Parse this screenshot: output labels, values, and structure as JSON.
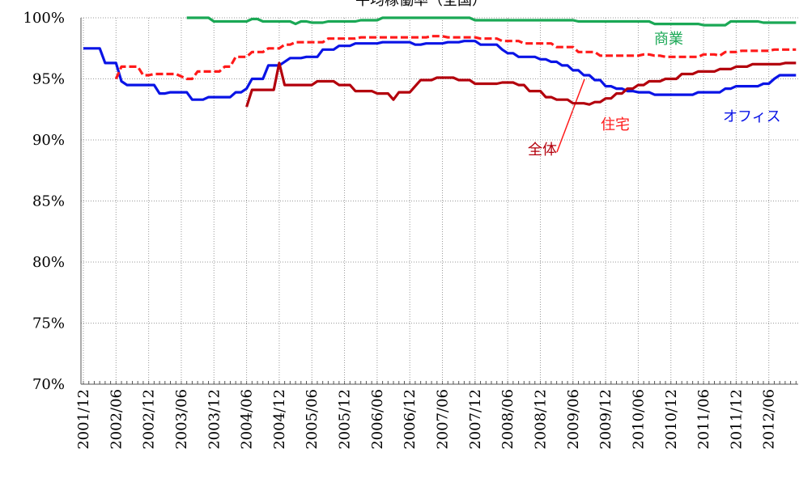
{
  "chart_data": {
    "type": "line",
    "title": "平均稼働率（全国）",
    "categories": [
      "2001/12",
      null,
      null,
      null,
      null,
      null,
      "2002/06",
      null,
      null,
      null,
      null,
      null,
      "2002/12",
      null,
      null,
      null,
      null,
      null,
      "2003/06",
      null,
      null,
      null,
      null,
      null,
      "2003/12",
      null,
      null,
      null,
      null,
      null,
      "2004/06",
      null,
      null,
      null,
      null,
      null,
      "2004/12",
      null,
      null,
      null,
      null,
      null,
      "2005/06",
      null,
      null,
      null,
      null,
      null,
      "2005/12",
      null,
      null,
      null,
      null,
      null,
      "2006/06",
      null,
      null,
      null,
      null,
      null,
      "2006/12",
      null,
      null,
      null,
      null,
      null,
      "2007/06",
      null,
      null,
      null,
      null,
      null,
      "2007/12",
      null,
      null,
      null,
      null,
      null,
      "2008/06",
      null,
      null,
      null,
      null,
      null,
      "2008/12",
      null,
      null,
      null,
      null,
      null,
      "2009/06",
      null,
      null,
      null,
      null,
      null,
      "2009/12",
      null,
      null,
      null,
      null,
      null,
      "2010/06",
      null,
      null,
      null,
      null,
      null,
      "2010/12",
      null,
      null,
      null,
      null,
      null,
      "2011/06",
      null,
      null,
      null,
      null,
      null,
      "2011/12",
      null,
      null,
      null,
      null,
      null,
      "2012/06",
      null,
      null,
      null,
      null,
      null
    ],
    "series": [
      {
        "name": "オフィス",
        "color": "#0a14e6",
        "dashed": false,
        "values": [
          97.5,
          97.5,
          97.5,
          97.5,
          96.3,
          96.3,
          96.3,
          94.8,
          94.5,
          94.5,
          94.5,
          94.5,
          94.5,
          94.5,
          93.8,
          93.8,
          93.9,
          93.9,
          93.9,
          93.9,
          93.3,
          93.3,
          93.3,
          93.5,
          93.5,
          93.5,
          93.5,
          93.5,
          93.9,
          93.9,
          94.2,
          95.0,
          95.0,
          95.0,
          96.1,
          96.1,
          96.1,
          96.4,
          96.7,
          96.7,
          96.7,
          96.8,
          96.8,
          96.8,
          97.4,
          97.4,
          97.4,
          97.7,
          97.7,
          97.7,
          97.9,
          97.9,
          97.9,
          97.9,
          97.9,
          98.0,
          98.0,
          98.0,
          98.0,
          98.0,
          98.0,
          97.8,
          97.8,
          97.9,
          97.9,
          97.9,
          97.9,
          98.0,
          98.0,
          98.0,
          98.1,
          98.1,
          98.1,
          97.8,
          97.8,
          97.8,
          97.8,
          97.4,
          97.1,
          97.1,
          96.8,
          96.8,
          96.8,
          96.8,
          96.6,
          96.6,
          96.4,
          96.4,
          96.1,
          96.1,
          95.7,
          95.7,
          95.3,
          95.3,
          94.9,
          94.9,
          94.4,
          94.4,
          94.2,
          94.2,
          94.0,
          94.0,
          93.9,
          93.9,
          93.9,
          93.7,
          93.7,
          93.7,
          93.7,
          93.7,
          93.7,
          93.7,
          93.7,
          93.9,
          93.9,
          93.9,
          93.9,
          93.9,
          94.2,
          94.2,
          94.4,
          94.4,
          94.4,
          94.4,
          94.4,
          94.6,
          94.6,
          95.0,
          95.3,
          95.3,
          95.3,
          95.3
        ]
      },
      {
        "name": "住宅",
        "color": "#ff1a1a",
        "dashed": true,
        "values": [
          null,
          null,
          null,
          null,
          null,
          null,
          95.0,
          96.0,
          96.0,
          96.0,
          96.0,
          95.3,
          95.3,
          95.4,
          95.4,
          95.4,
          95.4,
          95.4,
          95.2,
          95.0,
          95.0,
          95.6,
          95.6,
          95.6,
          95.6,
          95.6,
          96.0,
          96.0,
          96.8,
          96.8,
          96.8,
          97.2,
          97.2,
          97.2,
          97.5,
          97.5,
          97.5,
          97.8,
          97.8,
          98.0,
          98.0,
          98.0,
          98.0,
          98.0,
          98.0,
          98.3,
          98.3,
          98.3,
          98.3,
          98.3,
          98.3,
          98.4,
          98.4,
          98.4,
          98.4,
          98.4,
          98.4,
          98.4,
          98.4,
          98.4,
          98.4,
          98.4,
          98.4,
          98.4,
          98.5,
          98.5,
          98.5,
          98.4,
          98.4,
          98.4,
          98.4,
          98.4,
          98.4,
          98.3,
          98.3,
          98.3,
          98.3,
          98.1,
          98.1,
          98.1,
          98.1,
          97.9,
          97.9,
          97.9,
          97.9,
          97.9,
          97.9,
          97.6,
          97.6,
          97.6,
          97.6,
          97.2,
          97.2,
          97.2,
          97.2,
          96.9,
          96.9,
          96.9,
          96.9,
          96.9,
          96.9,
          96.9,
          96.9,
          97.0,
          97.0,
          96.9,
          96.9,
          96.8,
          96.8,
          96.8,
          96.8,
          96.8,
          96.8,
          96.8,
          97.0,
          97.0,
          97.0,
          96.9,
          97.2,
          97.2,
          97.2,
          97.3,
          97.3,
          97.3,
          97.3,
          97.3,
          97.3,
          97.4,
          97.4,
          97.4,
          97.4,
          97.4
        ]
      },
      {
        "name": "全体",
        "color": "#b3000c",
        "dashed": false,
        "values": [
          null,
          null,
          null,
          null,
          null,
          null,
          null,
          null,
          null,
          null,
          null,
          null,
          null,
          null,
          null,
          null,
          null,
          null,
          null,
          null,
          null,
          null,
          null,
          null,
          null,
          null,
          null,
          null,
          null,
          null,
          92.7,
          94.1,
          94.1,
          94.1,
          94.1,
          94.1,
          96.3,
          94.5,
          94.5,
          94.5,
          94.5,
          94.5,
          94.5,
          94.8,
          94.8,
          94.8,
          94.8,
          94.5,
          94.5,
          94.5,
          94.0,
          94.0,
          94.0,
          94.0,
          93.8,
          93.8,
          93.8,
          93.3,
          93.9,
          93.9,
          93.9,
          94.4,
          94.9,
          94.9,
          94.9,
          95.1,
          95.1,
          95.1,
          95.1,
          94.9,
          94.9,
          94.9,
          94.6,
          94.6,
          94.6,
          94.6,
          94.6,
          94.7,
          94.7,
          94.7,
          94.5,
          94.5,
          94.0,
          94.0,
          94.0,
          93.5,
          93.5,
          93.3,
          93.3,
          93.3,
          93.0,
          93.0,
          93.0,
          92.9,
          93.1,
          93.1,
          93.4,
          93.4,
          93.8,
          93.8,
          94.2,
          94.2,
          94.5,
          94.5,
          94.8,
          94.8,
          94.8,
          95.0,
          95.0,
          95.0,
          95.4,
          95.4,
          95.4,
          95.6,
          95.6,
          95.6,
          95.6,
          95.8,
          95.8,
          95.8,
          96.0,
          96.0,
          96.0,
          96.2,
          96.2,
          96.2,
          96.2,
          96.2,
          96.2,
          96.3,
          96.3,
          96.3
        ]
      },
      {
        "name": "商業",
        "color": "#1aa855",
        "dashed": false,
        "values": [
          null,
          null,
          null,
          null,
          null,
          null,
          null,
          null,
          null,
          null,
          null,
          null,
          null,
          null,
          null,
          null,
          null,
          null,
          null,
          100.0,
          100.0,
          100.0,
          100.0,
          100.0,
          99.7,
          99.7,
          99.7,
          99.7,
          99.7,
          99.7,
          99.7,
          99.9,
          99.9,
          99.7,
          99.7,
          99.7,
          99.7,
          99.7,
          99.7,
          99.5,
          99.7,
          99.7,
          99.6,
          99.6,
          99.6,
          99.7,
          99.7,
          99.7,
          99.7,
          99.7,
          99.7,
          99.8,
          99.8,
          99.8,
          99.8,
          100.0,
          100.0,
          100.0,
          100.0,
          100.0,
          100.0,
          100.0,
          100.0,
          100.0,
          100.0,
          100.0,
          100.0,
          100.0,
          100.0,
          100.0,
          100.0,
          100.0,
          99.8,
          99.8,
          99.8,
          99.8,
          99.8,
          99.8,
          99.8,
          99.8,
          99.8,
          99.8,
          99.8,
          99.8,
          99.8,
          99.8,
          99.8,
          99.8,
          99.8,
          99.8,
          99.8,
          99.7,
          99.7,
          99.7,
          99.7,
          99.7,
          99.7,
          99.7,
          99.7,
          99.7,
          99.7,
          99.7,
          99.7,
          99.7,
          99.7,
          99.5,
          99.5,
          99.5,
          99.5,
          99.5,
          99.5,
          99.5,
          99.5,
          99.5,
          99.4,
          99.4,
          99.4,
          99.4,
          99.4,
          99.7,
          99.7,
          99.7,
          99.7,
          99.7,
          99.7,
          99.6,
          99.6,
          99.6,
          99.6,
          99.6,
          99.6,
          99.6
        ]
      }
    ],
    "ylim": [
      70,
      100
    ],
    "yticks": [
      {
        "value": 70,
        "label": "70%"
      },
      {
        "value": 75,
        "label": "75%"
      },
      {
        "value": 80,
        "label": "80%"
      },
      {
        "value": 85,
        "label": "85%"
      },
      {
        "value": 90,
        "label": "90%"
      },
      {
        "value": 95,
        "label": "95%"
      },
      {
        "value": 100,
        "label": "100%"
      }
    ],
    "grid": true
  }
}
